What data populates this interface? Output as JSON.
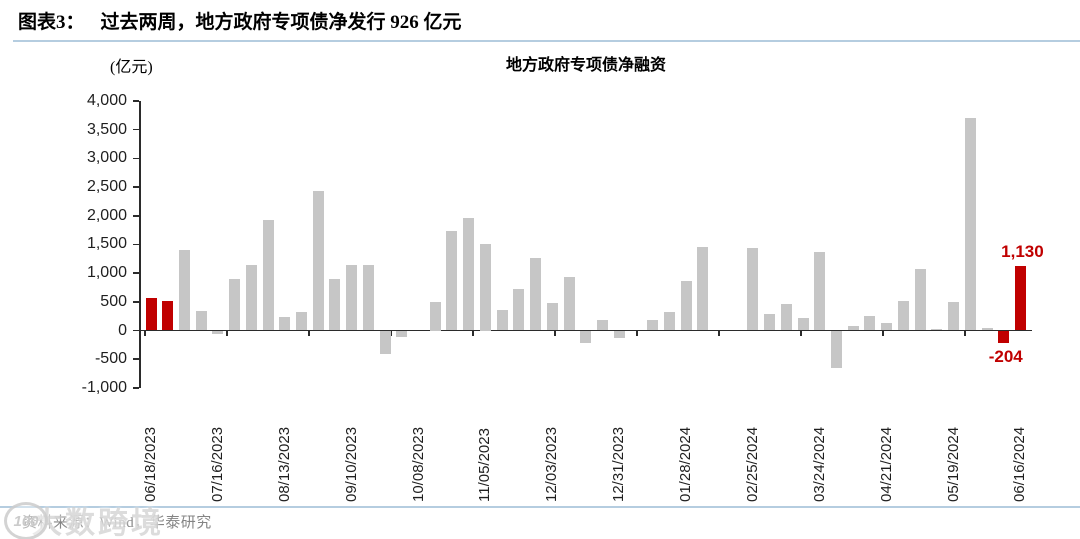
{
  "header": {
    "prefix": "图表3：",
    "title": "过去两周，地方政府专项债净发行 926 亿元"
  },
  "chart_data": {
    "type": "bar",
    "title": "地方政府专项债净融资",
    "unit_label": "(亿元)",
    "xlabel": "",
    "ylabel": "(亿元)",
    "ylim": [
      -1000,
      4000
    ],
    "ytick_step": 500,
    "ytick_labels": [
      "4,000",
      "3,500",
      "3,000",
      "2,500",
      "2,000",
      "1,500",
      "1,000",
      "500",
      "0",
      "-500",
      "-1,000"
    ],
    "grid": "off",
    "legend": "none",
    "label_every": 4,
    "x_tick_labels": [
      "06/18/2023",
      "07/16/2023",
      "08/13/2023",
      "09/10/2023",
      "10/08/2023",
      "11/05/2023",
      "12/03/2023",
      "12/31/2023",
      "01/28/2024",
      "02/25/2024",
      "03/24/2024",
      "04/21/2024",
      "05/19/2024",
      "06/16/2024"
    ],
    "categories": [
      "06/18/2023",
      "06/25/2023",
      "07/02/2023",
      "07/09/2023",
      "07/16/2023",
      "07/23/2023",
      "07/30/2023",
      "08/06/2023",
      "08/13/2023",
      "08/20/2023",
      "08/27/2023",
      "09/03/2023",
      "09/10/2023",
      "09/17/2023",
      "09/24/2023",
      "10/01/2023",
      "10/08/2023",
      "10/15/2023",
      "10/22/2023",
      "10/29/2023",
      "11/05/2023",
      "11/12/2023",
      "11/19/2023",
      "11/26/2023",
      "12/03/2023",
      "12/10/2023",
      "12/17/2023",
      "12/24/2023",
      "12/31/2023",
      "01/07/2024",
      "01/14/2024",
      "01/21/2024",
      "01/28/2024",
      "02/04/2024",
      "02/11/2024",
      "02/18/2024",
      "02/25/2024",
      "03/03/2024",
      "03/10/2024",
      "03/17/2024",
      "03/24/2024",
      "03/31/2024",
      "04/07/2024",
      "04/14/2024",
      "04/21/2024",
      "04/28/2024",
      "05/05/2024",
      "05/12/2024",
      "05/19/2024",
      "05/26/2024",
      "06/02/2024",
      "06/09/2024",
      "06/16/2024"
    ],
    "values": [
      560,
      520,
      1410,
      340,
      -40,
      890,
      1150,
      1920,
      230,
      330,
      2430,
      890,
      1150,
      1150,
      -400,
      -100,
      0,
      500,
      1740,
      1960,
      1500,
      350,
      730,
      1270,
      480,
      930,
      -210,
      190,
      -110,
      0,
      190,
      330,
      870,
      1450,
      0,
      0,
      1430,
      290,
      460,
      220,
      1370,
      -630,
      80,
      260,
      130,
      520,
      1070,
      30,
      490,
      3710,
      50,
      -204,
      1130
    ],
    "bar_color_default": "#c6c6c6",
    "bar_color_highlight": "#c00000",
    "highlight_indices": [
      0,
      1,
      51,
      52
    ],
    "data_labels": [
      {
        "index": 52,
        "text": "1,130",
        "position": "above",
        "color": "#c00000"
      },
      {
        "index": 51,
        "text": "-204",
        "position": "below",
        "color": "#c00000"
      }
    ]
  },
  "footer": {
    "source": "资料来源：Wind，华泰研究",
    "watermark_text": "大数跨境",
    "watermark_badge": "100"
  }
}
